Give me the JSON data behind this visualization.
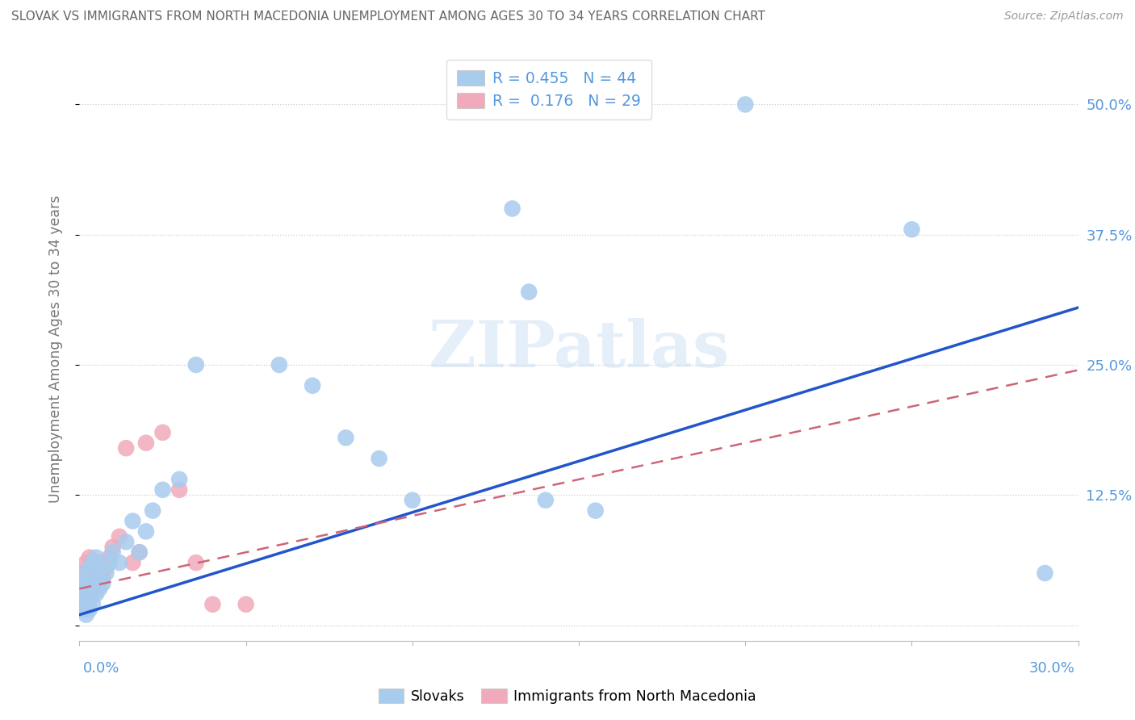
{
  "title": "SLOVAK VS IMMIGRANTS FROM NORTH MACEDONIA UNEMPLOYMENT AMONG AGES 30 TO 34 YEARS CORRELATION CHART",
  "source": "Source: ZipAtlas.com",
  "ylabel": "Unemployment Among Ages 30 to 34 years",
  "ytick_values": [
    0.0,
    0.125,
    0.25,
    0.375,
    0.5
  ],
  "ytick_labels": [
    "",
    "12.5%",
    "25.0%",
    "37.5%",
    "50.0%"
  ],
  "xlim": [
    0.0,
    0.3
  ],
  "ylim": [
    -0.015,
    0.545
  ],
  "legend1_R": "0.455",
  "legend1_N": "44",
  "legend2_R": "0.176",
  "legend2_N": "29",
  "blue_color": "#A8CCEE",
  "pink_color": "#F0AABB",
  "line_blue": "#2255CC",
  "line_pink": "#CC6677",
  "axis_label_color": "#5599DD",
  "watermark": "ZIPatlas",
  "slovaks_x": [
    0.001,
    0.001,
    0.001,
    0.002,
    0.002,
    0.002,
    0.002,
    0.003,
    0.003,
    0.003,
    0.003,
    0.004,
    0.004,
    0.004,
    0.005,
    0.005,
    0.005,
    0.006,
    0.006,
    0.007,
    0.008,
    0.009,
    0.01,
    0.012,
    0.014,
    0.016,
    0.018,
    0.02,
    0.022,
    0.025,
    0.03,
    0.035,
    0.06,
    0.07,
    0.08,
    0.09,
    0.1,
    0.13,
    0.135,
    0.14,
    0.155,
    0.2,
    0.25,
    0.29
  ],
  "slovaks_y": [
    0.02,
    0.03,
    0.04,
    0.01,
    0.025,
    0.035,
    0.05,
    0.015,
    0.03,
    0.045,
    0.055,
    0.02,
    0.04,
    0.06,
    0.03,
    0.045,
    0.065,
    0.035,
    0.055,
    0.04,
    0.05,
    0.06,
    0.07,
    0.06,
    0.08,
    0.1,
    0.07,
    0.09,
    0.11,
    0.13,
    0.14,
    0.25,
    0.25,
    0.23,
    0.18,
    0.16,
    0.12,
    0.4,
    0.32,
    0.12,
    0.11,
    0.5,
    0.38,
    0.05
  ],
  "nmacedonia_x": [
    0.001,
    0.001,
    0.001,
    0.002,
    0.002,
    0.002,
    0.003,
    0.003,
    0.003,
    0.004,
    0.004,
    0.005,
    0.005,
    0.006,
    0.006,
    0.007,
    0.008,
    0.009,
    0.01,
    0.012,
    0.014,
    0.016,
    0.018,
    0.02,
    0.025,
    0.03,
    0.035,
    0.04,
    0.05
  ],
  "nmacedonia_y": [
    0.015,
    0.03,
    0.05,
    0.02,
    0.04,
    0.06,
    0.025,
    0.045,
    0.065,
    0.03,
    0.05,
    0.035,
    0.055,
    0.04,
    0.06,
    0.045,
    0.055,
    0.065,
    0.075,
    0.085,
    0.17,
    0.06,
    0.07,
    0.175,
    0.185,
    0.13,
    0.06,
    0.02,
    0.02
  ],
  "blue_line_x0": 0.0,
  "blue_line_y0": 0.01,
  "blue_line_x1": 0.3,
  "blue_line_y1": 0.305,
  "pink_line_x0": 0.0,
  "pink_line_y0": 0.035,
  "pink_line_x1": 0.3,
  "pink_line_y1": 0.245
}
